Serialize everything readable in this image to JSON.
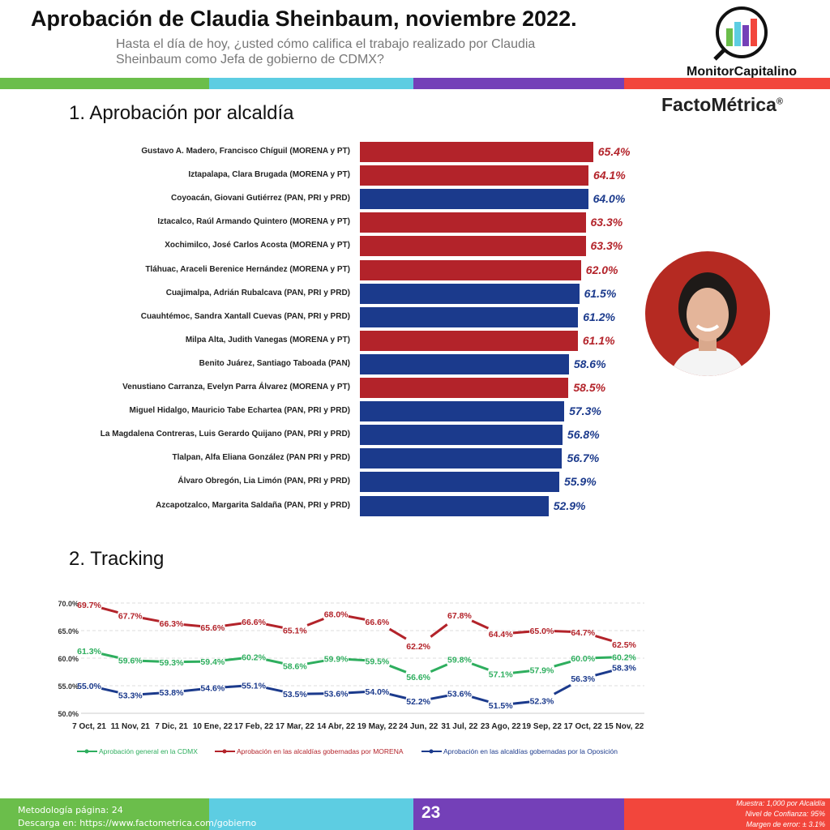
{
  "header": {
    "title": "Aprobación de Claudia Sheinbaum, noviembre 2022.",
    "subtitle": "Hasta el día de hoy, ¿usted cómo califica el trabajo realizado por Claudia Sheinbaum como Jefa de gobierno de CDMX?",
    "logo_monitor": "MonitorCapitalino",
    "logo_facto": "FactoMétrica",
    "logo_reg": "®"
  },
  "colors": {
    "morena": "#B3232A",
    "oposicion": "#1B3A8C",
    "general": "#2EAE5E",
    "green": "#6BBE4B",
    "cyan": "#5DCDE2",
    "purple": "#7440B8",
    "red": "#F2463C"
  },
  "section1": {
    "title": "1. Aprobación por alcaldía"
  },
  "section2": {
    "title": "2. Tracking"
  },
  "chart_data": [
    {
      "type": "bar",
      "orientation": "horizontal",
      "categories": [
        "Gustavo A. Madero, Francisco Chíguil (MORENA y PT)",
        "Iztapalapa, Clara Brugada (MORENA y PT)",
        "Coyoacán, Giovani Gutiérrez (PAN, PRI y PRD)",
        "Iztacalco, Raúl Armando Quintero (MORENA y PT)",
        "Xochimilco, José Carlos Acosta (MORENA y PT)",
        "Tláhuac, Araceli Berenice Hernández (MORENA y PT)",
        "Cuajimalpa, Adrián Rubalcava (PAN, PRI y PRD)",
        "Cuauhtémoc, Sandra Xantall Cuevas (PAN, PRI y PRD)",
        "Milpa Alta, Judith Vanegas (MORENA y PT)",
        "Benito Juárez, Santiago Taboada (PAN)",
        "Venustiano Carranza, Evelyn Parra Álvarez (MORENA y PT)",
        "Miguel Hidalgo, Mauricio Tabe Echartea (PAN, PRI y PRD)",
        "La Magdalena Contreras, Luis Gerardo Quijano (PAN, PRI y PRD)",
        "Tlalpan, Alfa Eliana González (PAN PRI y PRD)",
        "Álvaro Obregón, Lia Limón (PAN, PRI y PRD)",
        "Azcapotzalco, Margarita Saldaña (PAN, PRI y PRD)"
      ],
      "values": [
        65.4,
        64.1,
        64.0,
        63.3,
        63.3,
        62.0,
        61.5,
        61.2,
        61.1,
        58.6,
        58.5,
        57.3,
        56.8,
        56.7,
        55.9,
        52.9
      ],
      "labels": [
        "65.4%",
        "64.1%",
        "64.0%",
        "63.3%",
        "63.3%",
        "62.0%",
        "61.5%",
        "61.2%",
        "61.1%",
        "58.6%",
        "58.5%",
        "57.3%",
        "56.8%",
        "56.7%",
        "55.9%",
        "52.9%"
      ],
      "party": [
        "morena",
        "morena",
        "oposicion",
        "morena",
        "morena",
        "morena",
        "oposicion",
        "oposicion",
        "morena",
        "oposicion",
        "morena",
        "oposicion",
        "oposicion",
        "oposicion",
        "oposicion",
        "oposicion"
      ]
    },
    {
      "type": "line",
      "x": [
        "7 Oct, 21",
        "11 Nov, 21",
        "7 Dic, 21",
        "10 Ene, 22",
        "17 Feb, 22",
        "17 Mar, 22",
        "14 Abr, 22",
        "19 May, 22",
        "24 Jun, 22",
        "31 Jul, 22",
        "23 Ago, 22",
        "19 Sep, 22",
        "17 Oct, 22",
        "15 Nov, 22"
      ],
      "yticks": [
        "50.0%",
        "55.0%",
        "60.0%",
        "65.0%",
        "70.0%"
      ],
      "ylim": [
        50,
        70
      ],
      "grid": true,
      "legend_position": "bottom",
      "series": [
        {
          "name": "Aprobación general en la CDMX",
          "color": "#2EAE5E",
          "values": [
            61.3,
            59.6,
            59.3,
            59.4,
            60.2,
            58.6,
            59.9,
            59.5,
            56.6,
            59.8,
            57.1,
            57.9,
            60.0,
            60.2
          ]
        },
        {
          "name": "Aprobación en las alcaldías gobernadas por MORENA",
          "color": "#B3232A",
          "values": [
            69.7,
            67.7,
            66.3,
            65.6,
            66.6,
            65.1,
            68.0,
            66.6,
            62.2,
            67.8,
            64.4,
            65.0,
            64.7,
            62.5
          ]
        },
        {
          "name": "Aprobación en las alcaldías gobernadas por la Oposición",
          "color": "#1B3A8C",
          "values": [
            55.0,
            53.3,
            53.8,
            54.6,
            55.1,
            53.5,
            53.6,
            54.0,
            52.2,
            53.6,
            51.5,
            52.3,
            56.3,
            58.3
          ]
        }
      ]
    }
  ],
  "footer": {
    "metodologia": "Metodología página: 24",
    "descarga_label": "Descarga en: ",
    "descarga_url": "https://www.factometrica.com/gobierno",
    "page": "23",
    "muestra": "Muestra:  1,000 por Alcaldía",
    "confianza": "Nivel de Confianza: 95%",
    "margen": "Margen de error: ± 3.1%"
  }
}
